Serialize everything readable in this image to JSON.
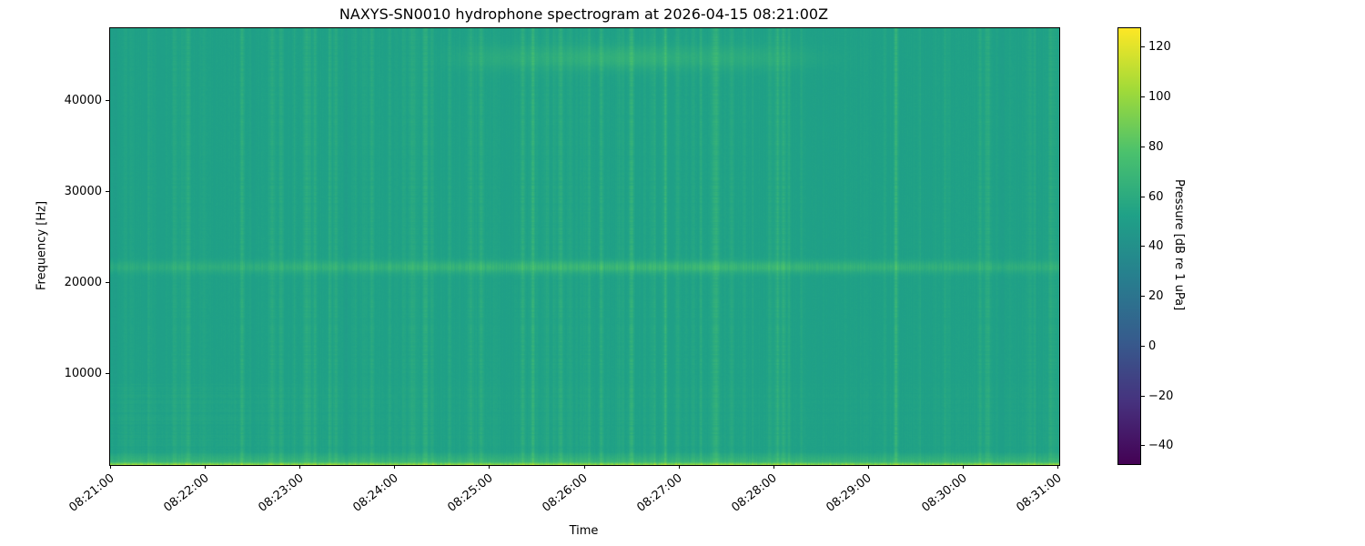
{
  "chart_data": {
    "type": "heatmap",
    "subtype": "spectrogram",
    "title": "NAXYS-SN0010 hydrophone spectrogram at 2026-04-15 08:21:00Z",
    "xlabel": "Time",
    "ylabel": "Frequency [Hz]",
    "x_tick_labels": [
      "08:21:00",
      "08:22:00",
      "08:23:00",
      "08:24:00",
      "08:25:00",
      "08:26:00",
      "08:27:00",
      "08:28:00",
      "08:29:00",
      "08:30:00",
      "08:31:00"
    ],
    "x_range": [
      "08:21:00",
      "08:31:00"
    ],
    "duration_s": 600,
    "y_range_hz": [
      0,
      48000
    ],
    "y_tick_values": [
      10000,
      20000,
      30000,
      40000
    ],
    "y_tick_labels": [
      "10000",
      "20000",
      "30000",
      "40000"
    ],
    "grid": false,
    "legend": "none",
    "colorbar": {
      "label": "Pressure [dB re 1 uPa]",
      "tick_values": [
        120,
        100,
        80,
        60,
        40,
        20,
        0,
        -20,
        -40
      ],
      "tick_labels": [
        "120",
        "100",
        "80",
        "60",
        "40",
        "20",
        "0",
        "−20",
        "−40"
      ],
      "vmin": -47,
      "vmax": 128,
      "colormap": "viridis",
      "gradient_stops": [
        {
          "t": 0.0,
          "color": "#440154"
        },
        {
          "t": 0.143,
          "color": "#46327e"
        },
        {
          "t": 0.286,
          "color": "#365c8d"
        },
        {
          "t": 0.429,
          "color": "#277f8e"
        },
        {
          "t": 0.571,
          "color": "#1fa187"
        },
        {
          "t": 0.714,
          "color": "#4ac16d"
        },
        {
          "t": 0.857,
          "color": "#a0da39"
        },
        {
          "t": 1.0,
          "color": "#fde725"
        }
      ]
    },
    "background_db": 53,
    "features": [
      {
        "name": "tonal-band",
        "description": "bright narrowband tone across full record",
        "f_center_hz": 21800,
        "f_sigma_hz": 450,
        "boost_db": 15,
        "envelope": {
          "base": 0.5,
          "peak_time_s": 330,
          "time_sigma_s": 140
        }
      },
      {
        "name": "surface-noise-band",
        "description": "elevated broadband noise at lowest frequencies",
        "f_max_hz": 1500,
        "boost_db": 20
      },
      {
        "name": "bottom-edge-band",
        "description": "very bright green-yellow strip at bottom edge",
        "f_max_hz": 400,
        "boost_db": 30
      },
      {
        "name": "high-frequency-events",
        "description": "diffuse bright patches near 45 kHz around 08:25-08:28",
        "f_center_hz": 44800,
        "f_sigma_hz": 900,
        "events": [
          {
            "time_s": 322,
            "sigma_s": 40,
            "boost_db": 11
          },
          {
            "time_s": 408,
            "sigma_s": 28,
            "boost_db": 6
          },
          {
            "time_s": 245,
            "sigma_s": 22,
            "boost_db": 5
          }
        ]
      },
      {
        "name": "broadband-clicks",
        "description": "fine vertical striations spanning all frequencies, densest 08:24-08:28",
        "count": 180,
        "extra_mid_count": 55,
        "mid_window_s": [
          170,
          430
        ],
        "max_boost_db": 8
      },
      {
        "name": "low-frequency-striations",
        "description": "faint horizontal banding below 9 kHz, strongest 08:21-08:23",
        "f_max_hz": 9000,
        "boost_db": 3.5,
        "left_emphasis_until_s": 175
      }
    ],
    "render_seed": 1337
  }
}
